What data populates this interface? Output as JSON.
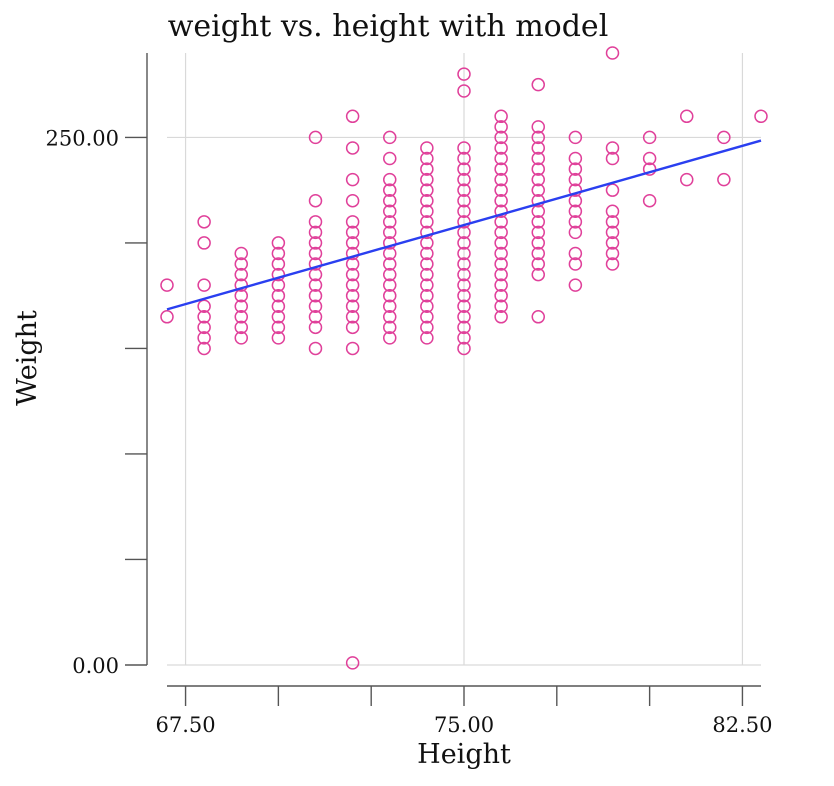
{
  "chart_data": {
    "type": "scatter",
    "title": "weight vs. height with model",
    "xlabel": "Height",
    "ylabel": "Weight",
    "xlim": [
      67,
      83
    ],
    "ylim": [
      0,
      290
    ],
    "x_ticks": [
      67.5,
      70,
      72.5,
      75,
      77.5,
      80,
      82.5
    ],
    "x_tick_labels": [
      "67.50",
      "",
      "",
      "75.00",
      "",
      "",
      "82.50"
    ],
    "y_ticks": [
      0,
      50,
      100,
      150,
      200,
      250
    ],
    "y_tick_labels": [
      "0.00",
      "",
      "",
      "",
      "",
      "250.00"
    ],
    "grid_x": [
      67.5,
      75,
      82.5
    ],
    "grid_y": [
      0,
      250
    ],
    "series": [
      {
        "kind": "points",
        "color": "#e0409a",
        "points": [
          [
            67,
            180
          ],
          [
            67,
            165
          ],
          [
            68,
            210
          ],
          [
            68,
            200
          ],
          [
            68,
            180
          ],
          [
            68,
            170
          ],
          [
            68,
            165
          ],
          [
            68,
            160
          ],
          [
            68,
            155
          ],
          [
            68,
            150
          ],
          [
            69,
            195
          ],
          [
            69,
            190
          ],
          [
            69,
            185
          ],
          [
            69,
            180
          ],
          [
            69,
            175
          ],
          [
            69,
            170
          ],
          [
            69,
            165
          ],
          [
            69,
            160
          ],
          [
            69,
            155
          ],
          [
            70,
            200
          ],
          [
            70,
            195
          ],
          [
            70,
            190
          ],
          [
            70,
            185
          ],
          [
            70,
            180
          ],
          [
            70,
            175
          ],
          [
            70,
            170
          ],
          [
            70,
            165
          ],
          [
            70,
            160
          ],
          [
            70,
            155
          ],
          [
            71,
            250
          ],
          [
            71,
            220
          ],
          [
            71,
            210
          ],
          [
            71,
            205
          ],
          [
            71,
            200
          ],
          [
            71,
            195
          ],
          [
            71,
            190
          ],
          [
            71,
            185
          ],
          [
            71,
            180
          ],
          [
            71,
            175
          ],
          [
            71,
            170
          ],
          [
            71,
            165
          ],
          [
            71,
            160
          ],
          [
            71,
            150
          ],
          [
            72,
            260
          ],
          [
            72,
            245
          ],
          [
            72,
            230
          ],
          [
            72,
            220
          ],
          [
            72,
            210
          ],
          [
            72,
            205
          ],
          [
            72,
            200
          ],
          [
            72,
            195
          ],
          [
            72,
            190
          ],
          [
            72,
            185
          ],
          [
            72,
            180
          ],
          [
            72,
            175
          ],
          [
            72,
            170
          ],
          [
            72,
            165
          ],
          [
            72,
            160
          ],
          [
            72,
            150
          ],
          [
            72,
            1
          ],
          [
            73,
            250
          ],
          [
            73,
            240
          ],
          [
            73,
            230
          ],
          [
            73,
            225
          ],
          [
            73,
            220
          ],
          [
            73,
            215
          ],
          [
            73,
            210
          ],
          [
            73,
            205
          ],
          [
            73,
            200
          ],
          [
            73,
            195
          ],
          [
            73,
            190
          ],
          [
            73,
            185
          ],
          [
            73,
            180
          ],
          [
            73,
            175
          ],
          [
            73,
            170
          ],
          [
            73,
            165
          ],
          [
            73,
            160
          ],
          [
            73,
            155
          ],
          [
            74,
            245
          ],
          [
            74,
            240
          ],
          [
            74,
            235
          ],
          [
            74,
            230
          ],
          [
            74,
            225
          ],
          [
            74,
            220
          ],
          [
            74,
            215
          ],
          [
            74,
            210
          ],
          [
            74,
            205
          ],
          [
            74,
            200
          ],
          [
            74,
            195
          ],
          [
            74,
            190
          ],
          [
            74,
            185
          ],
          [
            74,
            180
          ],
          [
            74,
            175
          ],
          [
            74,
            170
          ],
          [
            74,
            165
          ],
          [
            74,
            160
          ],
          [
            74,
            155
          ],
          [
            75,
            280
          ],
          [
            75,
            272
          ],
          [
            75,
            245
          ],
          [
            75,
            240
          ],
          [
            75,
            235
          ],
          [
            75,
            230
          ],
          [
            75,
            225
          ],
          [
            75,
            220
          ],
          [
            75,
            215
          ],
          [
            75,
            210
          ],
          [
            75,
            205
          ],
          [
            75,
            200
          ],
          [
            75,
            195
          ],
          [
            75,
            190
          ],
          [
            75,
            185
          ],
          [
            75,
            180
          ],
          [
            75,
            175
          ],
          [
            75,
            170
          ],
          [
            75,
            165
          ],
          [
            75,
            160
          ],
          [
            75,
            155
          ],
          [
            75,
            150
          ],
          [
            76,
            260
          ],
          [
            76,
            255
          ],
          [
            76,
            250
          ],
          [
            76,
            245
          ],
          [
            76,
            240
          ],
          [
            76,
            235
          ],
          [
            76,
            230
          ],
          [
            76,
            225
          ],
          [
            76,
            220
          ],
          [
            76,
            215
          ],
          [
            76,
            210
          ],
          [
            76,
            205
          ],
          [
            76,
            200
          ],
          [
            76,
            195
          ],
          [
            76,
            190
          ],
          [
            76,
            185
          ],
          [
            76,
            180
          ],
          [
            76,
            175
          ],
          [
            76,
            170
          ],
          [
            76,
            165
          ],
          [
            77,
            275
          ],
          [
            77,
            255
          ],
          [
            77,
            250
          ],
          [
            77,
            245
          ],
          [
            77,
            240
          ],
          [
            77,
            235
          ],
          [
            77,
            230
          ],
          [
            77,
            225
          ],
          [
            77,
            220
          ],
          [
            77,
            215
          ],
          [
            77,
            210
          ],
          [
            77,
            205
          ],
          [
            77,
            200
          ],
          [
            77,
            195
          ],
          [
            77,
            190
          ],
          [
            77,
            185
          ],
          [
            77,
            165
          ],
          [
            78,
            250
          ],
          [
            78,
            240
          ],
          [
            78,
            235
          ],
          [
            78,
            230
          ],
          [
            78,
            225
          ],
          [
            78,
            220
          ],
          [
            78,
            215
          ],
          [
            78,
            210
          ],
          [
            78,
            205
          ],
          [
            78,
            195
          ],
          [
            78,
            190
          ],
          [
            78,
            180
          ],
          [
            79,
            290
          ],
          [
            79,
            245
          ],
          [
            79,
            240
          ],
          [
            79,
            225
          ],
          [
            79,
            215
          ],
          [
            79,
            210
          ],
          [
            79,
            205
          ],
          [
            79,
            200
          ],
          [
            79,
            195
          ],
          [
            79,
            190
          ],
          [
            80,
            250
          ],
          [
            80,
            240
          ],
          [
            80,
            235
          ],
          [
            80,
            220
          ],
          [
            81,
            260
          ],
          [
            81,
            230
          ],
          [
            82,
            250
          ],
          [
            82,
            230
          ],
          [
            83,
            260
          ]
        ]
      },
      {
        "kind": "line",
        "color": "#2a3ff0",
        "points": [
          [
            67,
            168.5
          ],
          [
            83,
            248.5
          ]
        ]
      }
    ]
  }
}
